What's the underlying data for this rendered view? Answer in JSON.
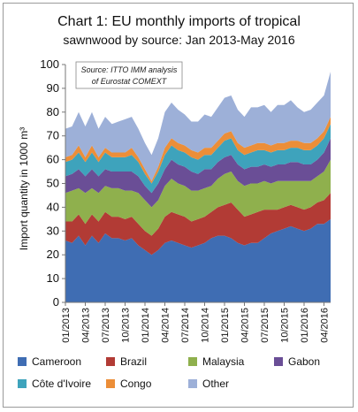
{
  "chart_data": {
    "type": "area",
    "title": "Chart 1: EU monthly imports of tropical",
    "subtitle": "sawnwood by source: Jan 2013-May 2016",
    "ylabel": "Import quantity in 1000 m³",
    "ylim": [
      0,
      100
    ],
    "yticks": [
      "0",
      "10",
      "20",
      "30",
      "40",
      "50",
      "60",
      "70",
      "80",
      "90",
      "100"
    ],
    "xtick_labels": [
      "01/2013",
      "04/2013",
      "07/2013",
      "10/2013",
      "01/2014",
      "04/2014",
      "07/2014",
      "10/2014",
      "01/2015",
      "04/2015",
      "07/2015",
      "10/2015",
      "01/2016",
      "04/2016"
    ],
    "xtick_index": [
      0,
      3,
      6,
      9,
      12,
      15,
      18,
      21,
      24,
      27,
      30,
      33,
      36,
      39
    ],
    "source_note": [
      "Source: ITTO IMM analysis",
      "of Eurostat COMEXT"
    ],
    "months": 41,
    "legend_position": "bottom",
    "series": [
      {
        "name": "Cameroon",
        "color": "#3f6db3",
        "values": [
          26,
          25,
          28,
          24,
          28,
          25,
          29,
          27,
          27,
          26,
          27,
          24,
          22,
          20,
          22,
          25,
          26,
          25,
          24,
          23,
          24,
          25,
          27,
          28,
          28,
          27,
          25,
          24,
          25,
          25,
          27,
          29,
          30,
          31,
          32,
          31,
          30,
          31,
          33,
          33,
          35
        ]
      },
      {
        "name": "Brazil",
        "color": "#b23b35",
        "values": [
          8,
          9,
          9,
          9,
          9,
          9,
          9,
          9,
          9,
          9,
          9,
          9,
          8,
          8,
          9,
          11,
          12,
          12,
          12,
          11,
          11,
          11,
          11,
          12,
          13,
          15,
          14,
          12,
          12,
          13,
          12,
          10,
          9,
          9,
          9,
          9,
          9,
          9,
          9,
          10,
          11
        ]
      },
      {
        "name": "Malaysia",
        "color": "#8fb04d",
        "values": [
          12,
          13,
          11,
          13,
          11,
          12,
          11,
          12,
          12,
          12,
          11,
          13,
          13,
          12,
          12,
          13,
          14,
          13,
          13,
          13,
          12,
          12,
          11,
          12,
          13,
          13,
          12,
          13,
          13,
          12,
          12,
          11,
          12,
          11,
          10,
          11,
          12,
          11,
          11,
          12,
          14
        ]
      },
      {
        "name": "Gabon",
        "color": "#6a4e96",
        "values": [
          7,
          7,
          8,
          7,
          8,
          7,
          7,
          7,
          7,
          8,
          8,
          7,
          6,
          6,
          7,
          7,
          8,
          8,
          8,
          8,
          7,
          8,
          7,
          7,
          7,
          7,
          7,
          7,
          7,
          7,
          7,
          7,
          7,
          7,
          8,
          8,
          7,
          7,
          7,
          8,
          9
        ]
      },
      {
        "name": "Côte d'Ivoire",
        "color": "#3ea3bc",
        "values": [
          6,
          6,
          7,
          6,
          7,
          6,
          7,
          6,
          6,
          6,
          7,
          6,
          5,
          4,
          5,
          6,
          6,
          6,
          6,
          6,
          6,
          6,
          6,
          6,
          7,
          7,
          6,
          6,
          6,
          7,
          6,
          6,
          6,
          6,
          6,
          6,
          6,
          6,
          6,
          6,
          6
        ]
      },
      {
        "name": "Congo",
        "color": "#ec8e38",
        "values": [
          2,
          2,
          3,
          2,
          3,
          2,
          2,
          2,
          2,
          2,
          3,
          2,
          2,
          1,
          2,
          3,
          3,
          3,
          3,
          3,
          3,
          3,
          3,
          3,
          3,
          3,
          3,
          3,
          3,
          3,
          3,
          3,
          3,
          3,
          3,
          3,
          3,
          3,
          3,
          3,
          3
        ]
      },
      {
        "name": "Other",
        "color": "#9db0d8",
        "values": [
          12,
          12,
          14,
          13,
          14,
          12,
          13,
          12,
          13,
          14,
          13,
          12,
          11,
          11,
          12,
          15,
          15,
          14,
          13,
          12,
          13,
          14,
          13,
          14,
          15,
          15,
          14,
          13,
          16,
          15,
          16,
          14,
          16,
          16,
          17,
          14,
          13,
          14,
          15,
          15,
          19
        ]
      }
    ]
  }
}
